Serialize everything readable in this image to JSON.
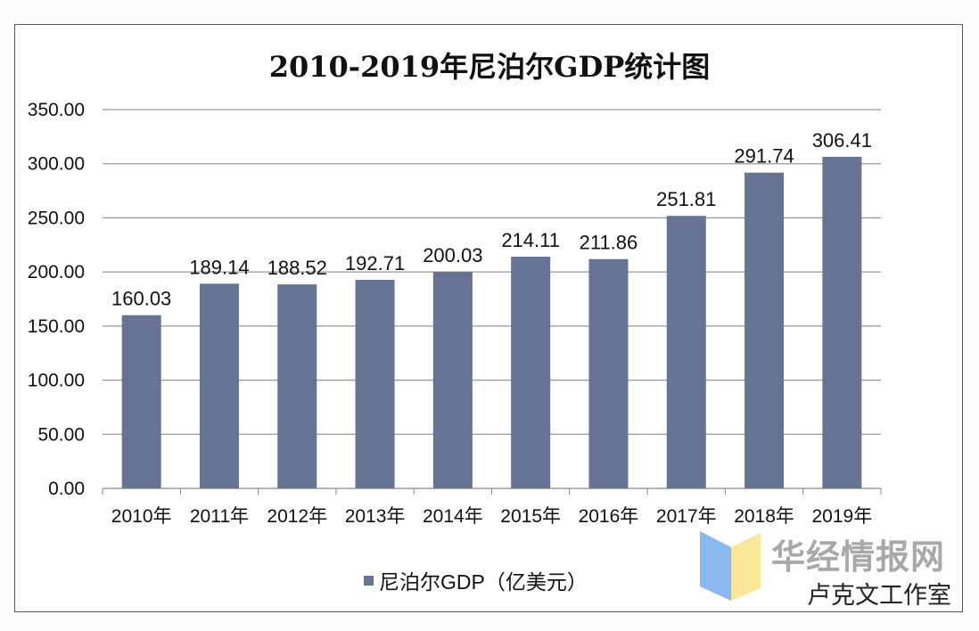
{
  "chart_data": {
    "type": "bar",
    "title": "2010-2019年尼泊尔GDP统计图",
    "categories": [
      "2010年",
      "2011年",
      "2012年",
      "2013年",
      "2014年",
      "2015年",
      "2016年",
      "2017年",
      "2018年",
      "2019年"
    ],
    "series": [
      {
        "name": "尼泊尔GDP（亿美元）",
        "values": [
          160.03,
          189.14,
          188.52,
          192.71,
          200.03,
          214.11,
          211.86,
          251.81,
          291.74,
          306.41
        ]
      }
    ],
    "data_labels": [
      "160.03",
      "189.14",
      "188.52",
      "192.71",
      "200.03",
      "214.11",
      "211.86",
      "251.81",
      "291.74",
      "306.41"
    ],
    "yticks": [
      "0.00",
      "50.00",
      "100.00",
      "150.00",
      "200.00",
      "250.00",
      "300.00",
      "350.00"
    ],
    "ylim": [
      0,
      350
    ],
    "grid": true,
    "legend": "bottom",
    "bar_color": "#667395"
  },
  "watermark": {
    "logo_text": "华经情报网",
    "wechat_text": "卢克文工作室",
    "logo_colors": [
      "#8bb8f0",
      "#fbe79a"
    ]
  }
}
